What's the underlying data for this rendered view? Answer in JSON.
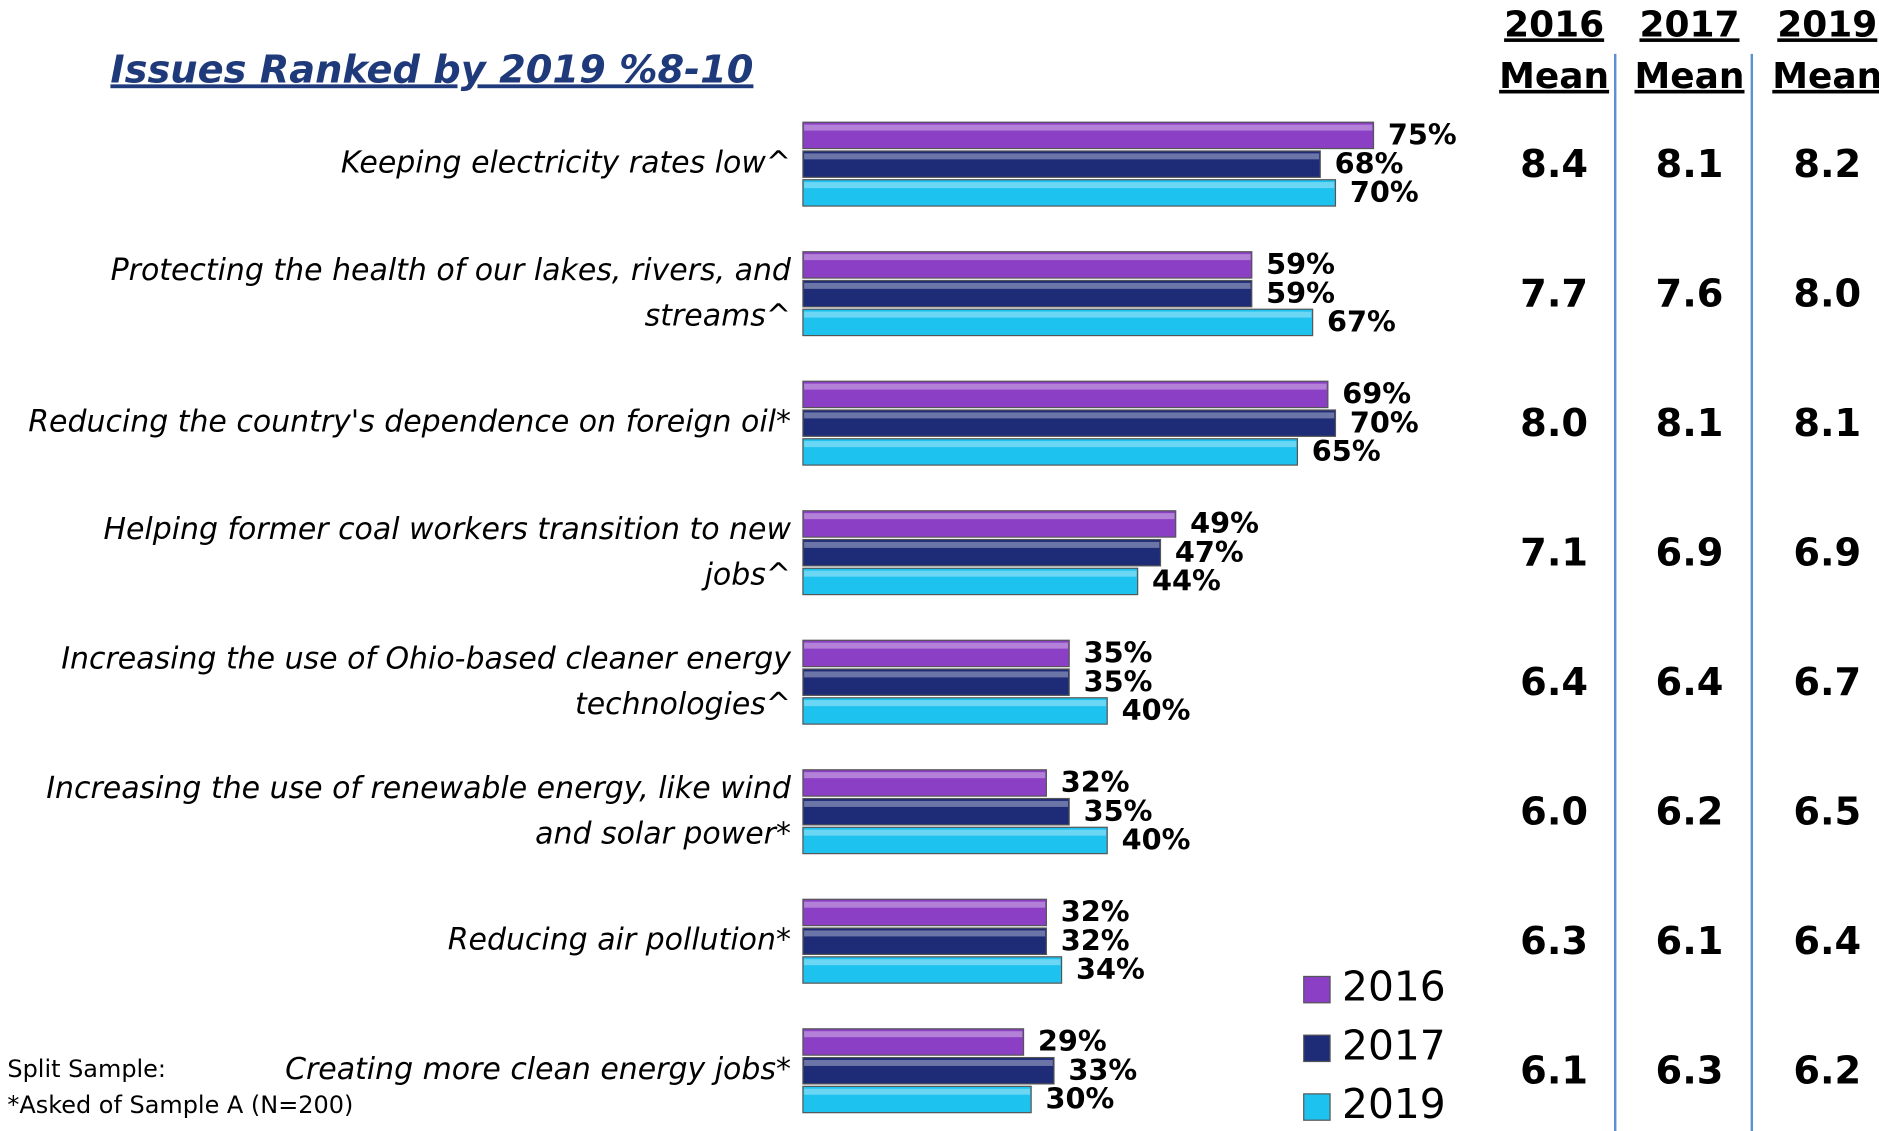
{
  "chart_data": {
    "type": "bar",
    "orientation": "horizontal",
    "subtitle": "Issues Ranked by 2019 %8-10",
    "categories": [
      "Keeping electricity rates low^",
      "Protecting the health of our lakes, rivers, and streams^",
      "Reducing the country's dependence on foreign oil*",
      "Helping former coal workers transition to new jobs^",
      "Increasing the use of Ohio-based cleaner energy technologies^",
      "Increasing the use of renewable energy, like wind and solar power*",
      "Reducing air pollution*",
      "Creating more clean energy jobs*"
    ],
    "series": [
      {
        "name": "2016",
        "color": "#8b3fc4",
        "values": [
          75,
          59,
          69,
          49,
          35,
          32,
          32,
          29
        ],
        "value_labels": [
          "75%",
          "59%",
          "69%",
          "49%",
          "35%",
          "32%",
          "32%",
          "29%"
        ]
      },
      {
        "name": "2017",
        "color": "#1e2c78",
        "values": [
          68,
          59,
          70,
          47,
          35,
          35,
          32,
          33
        ],
        "value_labels": [
          "68%",
          "59%",
          "70%",
          "47%",
          "35%",
          "35%",
          "32%",
          "33%"
        ]
      },
      {
        "name": "2019",
        "color": "#1ec2ee",
        "values": [
          70,
          67,
          65,
          44,
          40,
          40,
          34,
          30
        ],
        "value_labels": [
          "70%",
          "67%",
          "65%",
          "44%",
          "40%",
          "40%",
          "34%",
          "30%"
        ]
      }
    ],
    "xlim": [
      0,
      100
    ],
    "legend": "lower right"
  },
  "table": {
    "headers": [
      [
        "2016",
        "Mean"
      ],
      [
        "2017",
        "Mean"
      ],
      [
        "2019",
        "Mean"
      ]
    ],
    "rows": [
      [
        "8.4",
        "8.1",
        "8.2"
      ],
      [
        "7.7",
        "7.6",
        "8.0"
      ],
      [
        "8.0",
        "8.1",
        "8.1"
      ],
      [
        "7.1",
        "6.9",
        "6.9"
      ],
      [
        "6.4",
        "6.4",
        "6.7"
      ],
      [
        "6.0",
        "6.2",
        "6.5"
      ],
      [
        "6.3",
        "6.1",
        "6.4"
      ],
      [
        "6.1",
        "6.3",
        "6.2"
      ]
    ]
  },
  "footnotes": [
    "Split Sample:",
    "*Asked of Sample A (N=200)"
  ]
}
